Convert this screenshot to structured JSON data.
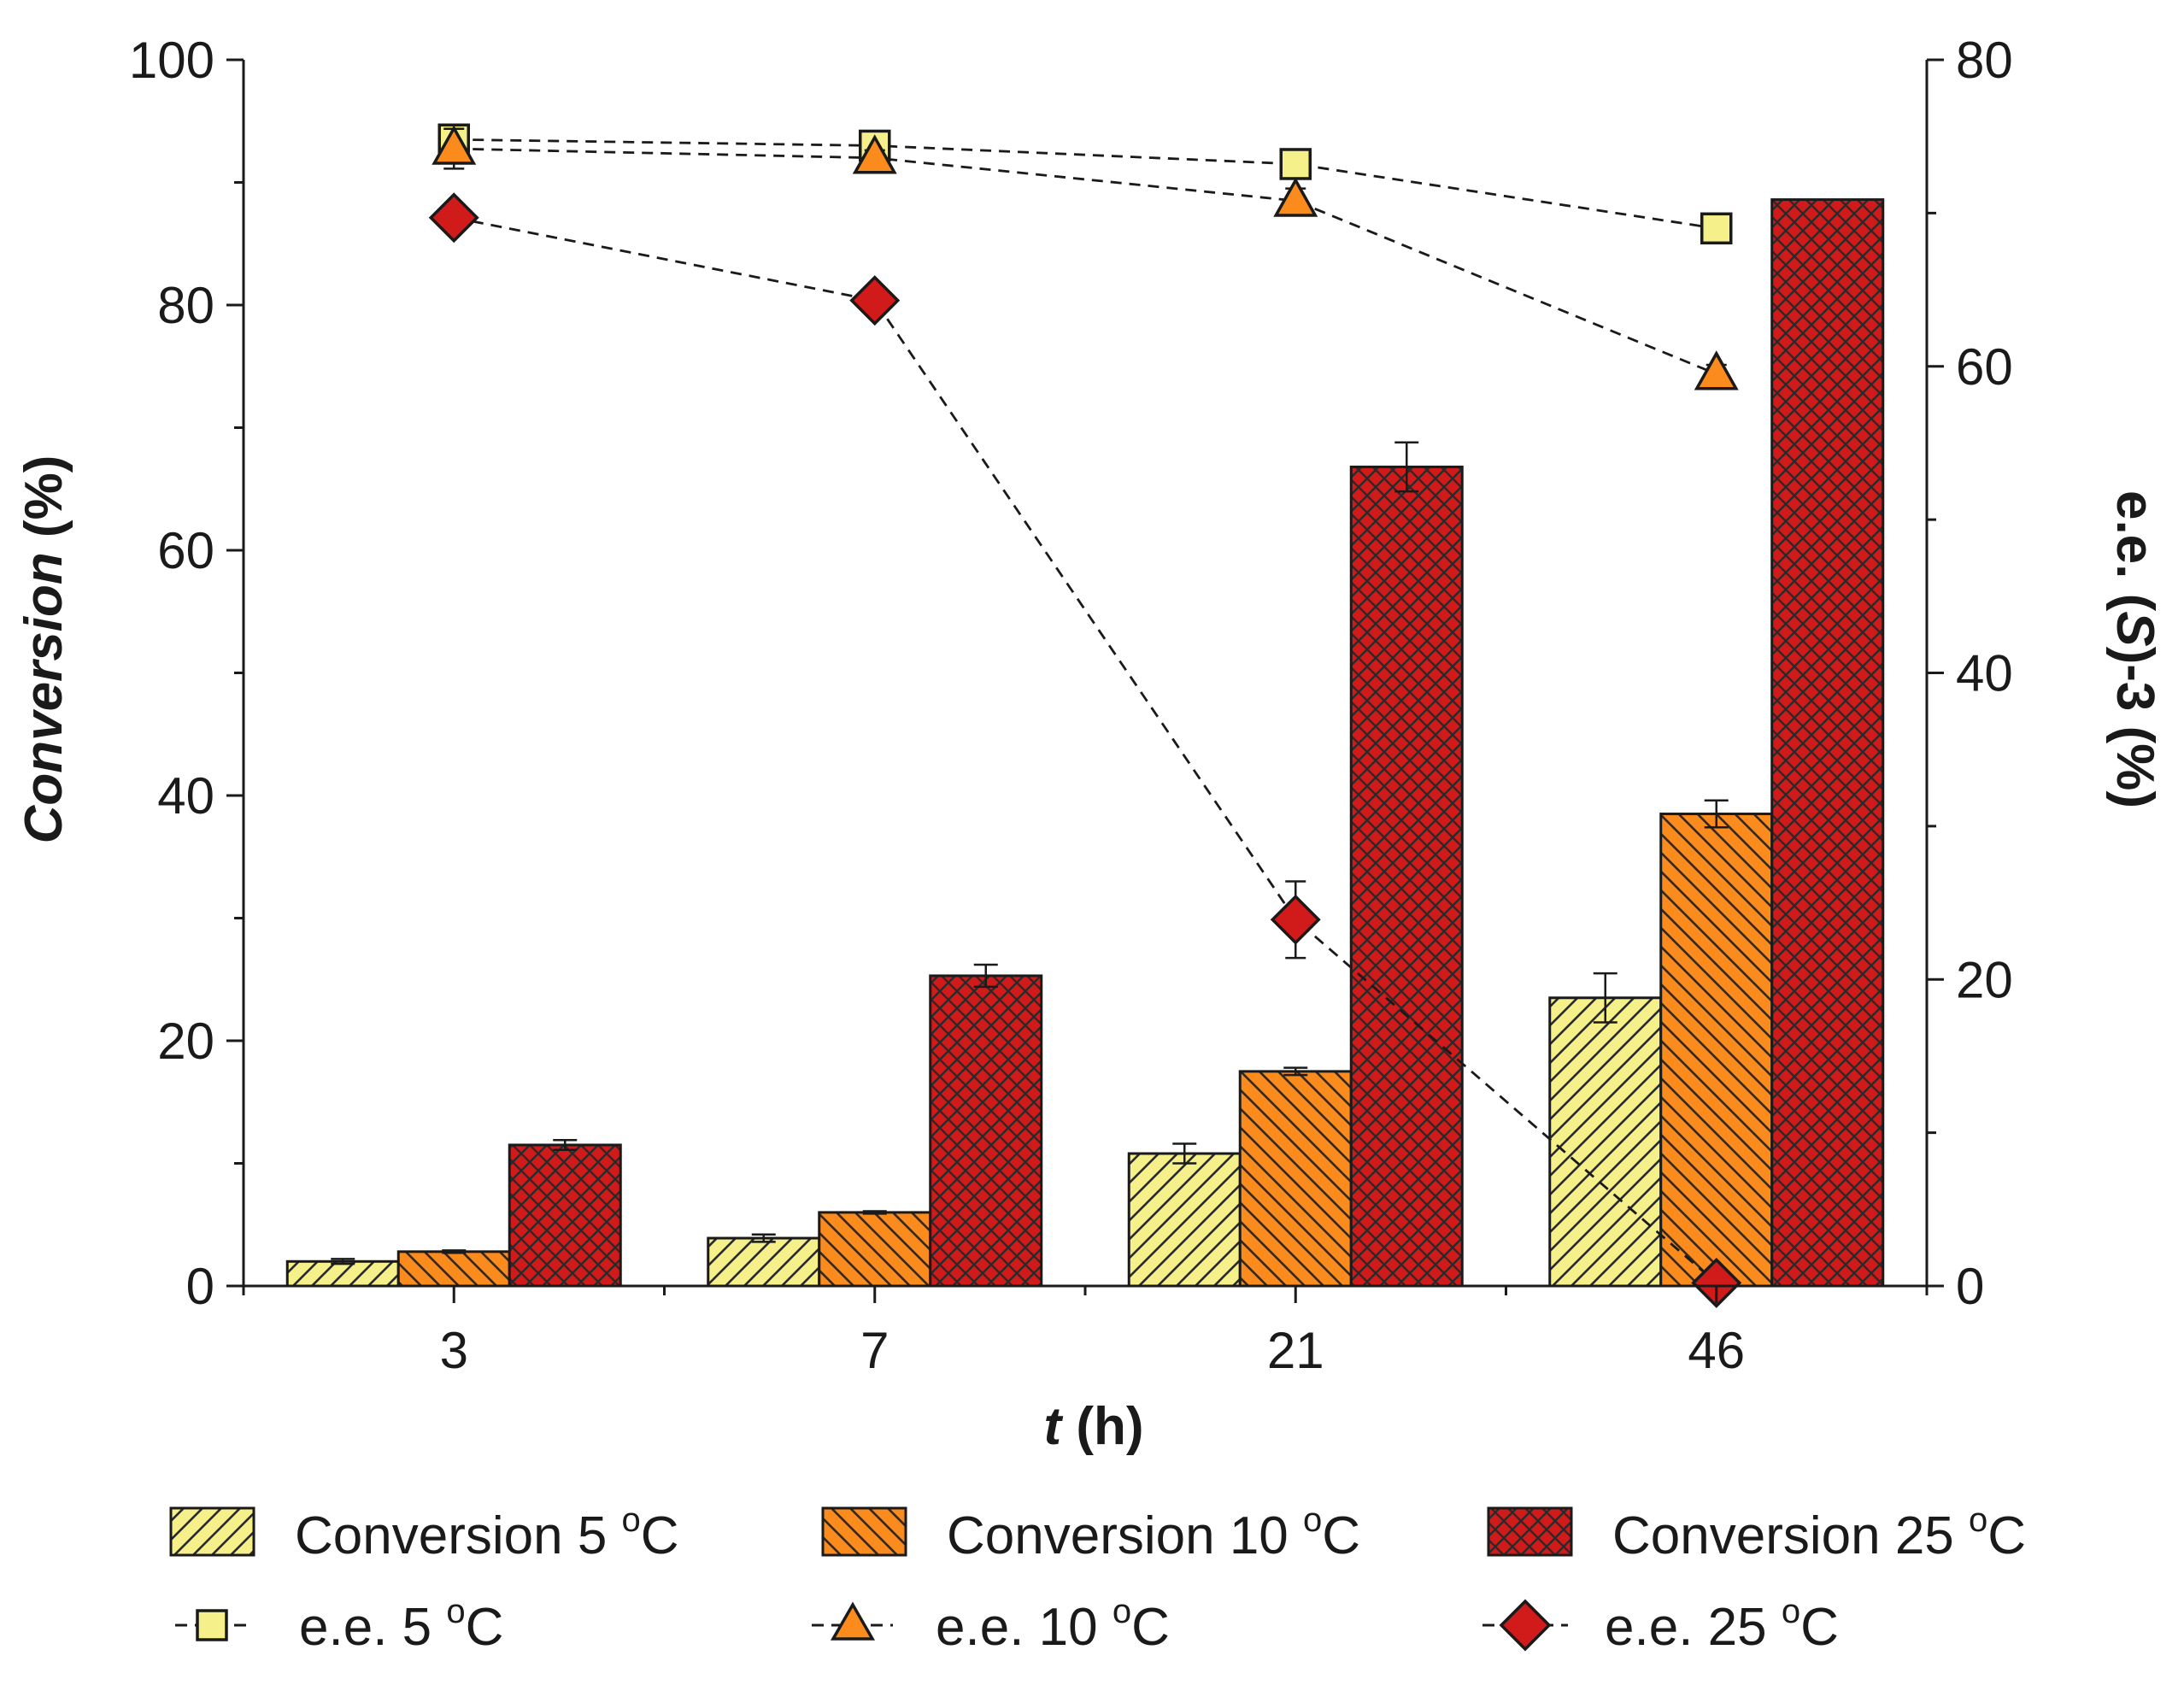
{
  "chart_data": {
    "type": "bar",
    "x_title_italic": "t",
    "x_title_rest": " (h)",
    "y_left_title": "Conversion (%)",
    "y_left_title_italic": "Conversion",
    "y_left_title_rest": " (%)",
    "y_right_title_pre": "e.e. (",
    "y_right_title_italic": "S",
    "y_right_title_post": ")-3 (%)",
    "categories": [
      "3",
      "7",
      "21",
      "46"
    ],
    "y_left_range": [
      0,
      100
    ],
    "y_left_ticks": [
      "0",
      "20",
      "40",
      "60",
      "80",
      "100"
    ],
    "y_right_range": [
      0,
      80
    ],
    "y_right_ticks": [
      "0",
      "20",
      "40",
      "60",
      "80"
    ],
    "bar_series": [
      {
        "name": "Conversion 5 °C",
        "label_main": "Conversion 5 ",
        "label_sup": "o",
        "label_unit": "C",
        "color": "#f5f08a",
        "pattern": "diag-right",
        "values": [
          2.0,
          3.9,
          10.8,
          23.5
        ],
        "errors": [
          0.2,
          0.3,
          0.8,
          2.0
        ]
      },
      {
        "name": "Conversion 10 °C",
        "label_main": "Conversion 10 ",
        "label_sup": "o",
        "label_unit": "C",
        "color": "#fb8b1c",
        "pattern": "diag-left",
        "values": [
          2.8,
          6.0,
          17.5,
          38.5
        ],
        "errors": [
          0.1,
          0.1,
          0.3,
          1.1
        ]
      },
      {
        "name": "Conversion 25 °C",
        "label_main": "Conversion 25 ",
        "label_sup": "o",
        "label_unit": "C",
        "color": "#d11a1a",
        "pattern": "crosshatch",
        "values": [
          11.5,
          25.3,
          66.8,
          88.6
        ],
        "errors": [
          0.4,
          0.9,
          2.0,
          0.0
        ]
      }
    ],
    "line_series": [
      {
        "name": "e.e. 5 °C",
        "label_main": "e.e. 5 ",
        "label_sup": "o",
        "label_unit": "C",
        "marker": "square",
        "color": "#f5f08a",
        "values": [
          74.8,
          74.4,
          73.2,
          69.0
        ],
        "errors": [
          0.5,
          0.4,
          0.4,
          0.5
        ]
      },
      {
        "name": "e.e. 10 °C",
        "label_main": "e.e. 10 ",
        "label_sup": "o",
        "label_unit": "C",
        "marker": "triangle",
        "color": "#fb8b1c",
        "values": [
          74.2,
          73.6,
          70.8,
          59.5
        ],
        "errors": [
          1.3,
          0.5,
          0.8,
          0.6
        ]
      },
      {
        "name": "e.e. 25 °C",
        "label_main": "e.e. 25 ",
        "label_sup": "o",
        "label_unit": "C",
        "marker": "diamond",
        "color": "#d11a1a",
        "values": [
          69.7,
          64.3,
          23.9,
          0.2
        ],
        "errors": [
          0.3,
          0.6,
          2.5,
          0.3
        ]
      }
    ]
  }
}
